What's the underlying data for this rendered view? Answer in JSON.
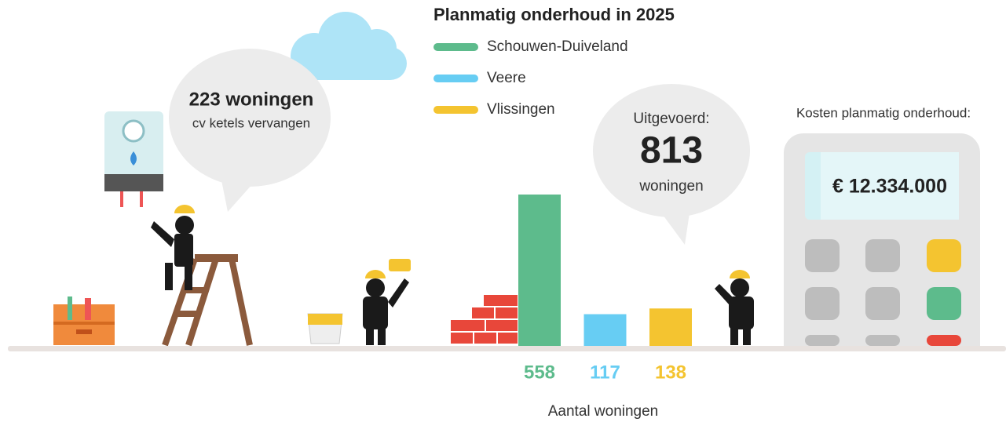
{
  "chart_data": {
    "type": "bar",
    "title": "Planmatig onderhoud in 2025",
    "xlabel": "Aantal woningen",
    "categories": [
      null
    ],
    "series": [
      {
        "name": "Schouwen-Duiveland",
        "color": "#5dbb8c",
        "values": [
          558
        ]
      },
      {
        "name": "Veere",
        "color": "#67cdf3",
        "values": [
          117
        ]
      },
      {
        "name": "Vlissingen",
        "color": "#f4c430",
        "values": [
          138
        ]
      }
    ],
    "annotations": [
      {
        "text": "223 woningen"
      },
      {
        "text": "cv ketels vervangen"
      },
      {
        "text": "Uitgevoerd:"
      },
      {
        "text": "813"
      },
      {
        "text": "woningen"
      },
      {
        "text": "Kosten planmatig onderhoud:"
      },
      {
        "text": "€ 12.334.000"
      }
    ]
  }
}
